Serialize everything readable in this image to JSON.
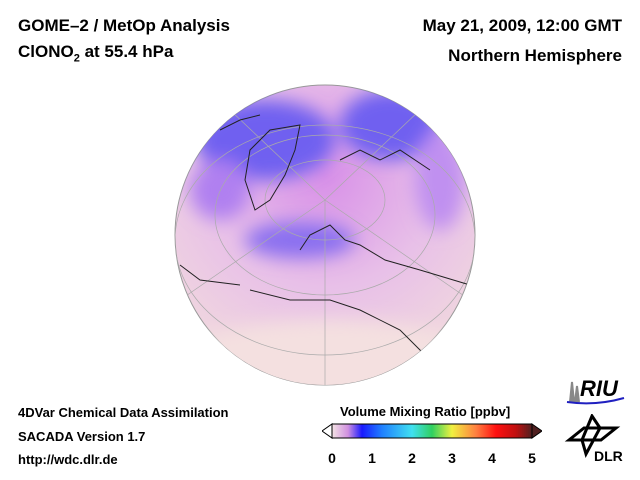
{
  "header": {
    "title": "GOME–2 / MetOp Analysis",
    "species": "ClONO",
    "species_sub": "2",
    "species_suffix": " at 55.4 hPa",
    "date": "May 21, 2009, 12:00 GMT",
    "region": "Northern Hemisphere"
  },
  "footer": {
    "line1": "4DVar Chemical Data Assimilation",
    "line2": "SACADA Version 1.7",
    "line3": "http://wdc.dlr.de"
  },
  "colorbar": {
    "title": "Volume Mixing Ratio [ppbv]",
    "ticks": [
      "0",
      "1",
      "2",
      "3",
      "4",
      "5"
    ],
    "range": [
      0,
      5
    ],
    "colors": [
      "#f4e4e4",
      "#e0a0e0",
      "#1a1aff",
      "#2080ff",
      "#40e0f0",
      "#30d060",
      "#f0f040",
      "#ff8040",
      "#ff1010",
      "#c01010",
      "#502020"
    ]
  },
  "logos": {
    "riu": "RIU",
    "dlr": "DLR"
  }
}
